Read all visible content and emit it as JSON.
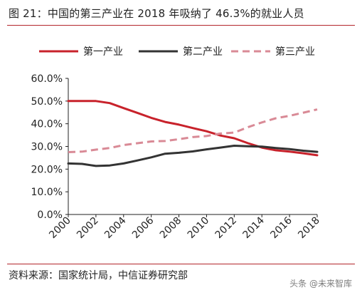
{
  "header": {
    "title": "图 21：中国的第三产业在 2018 年吸纳了 46.3%的就业人员"
  },
  "footer": {
    "source": "资料来源：国家统计局，中信证券研究部",
    "watermark": "头条 @未来智库"
  },
  "colors": {
    "rule": "#b3262b",
    "axis": "#222222"
  },
  "chart_data": {
    "type": "line",
    "title": "",
    "xlabel": "",
    "ylabel": "",
    "ylim": [
      0,
      60
    ],
    "xlim": [
      2000,
      2018
    ],
    "grid": false,
    "legend_position": "top",
    "x_ticks": [
      "2000",
      "2002",
      "2004",
      "2006",
      "2008",
      "2010",
      "2012",
      "2014",
      "2016",
      "2018"
    ],
    "y_ticks": [
      "0.0%",
      "10.0%",
      "20.0%",
      "30.0%",
      "40.0%",
      "50.0%",
      "60.0%"
    ],
    "x": [
      2000,
      2001,
      2002,
      2003,
      2004,
      2005,
      2006,
      2007,
      2008,
      2009,
      2010,
      2011,
      2012,
      2013,
      2014,
      2015,
      2016,
      2017,
      2018
    ],
    "series": [
      {
        "name": "第一产业",
        "color": "#c8222b",
        "dash": "solid",
        "values": [
          50.0,
          50.0,
          50.0,
          49.1,
          46.9,
          44.8,
          42.6,
          40.8,
          39.6,
          38.1,
          36.7,
          34.8,
          33.6,
          31.4,
          29.5,
          28.3,
          27.7,
          27.0,
          26.1
        ]
      },
      {
        "name": "第二产业",
        "color": "#333333",
        "dash": "solid",
        "values": [
          22.5,
          22.3,
          21.4,
          21.6,
          22.5,
          23.8,
          25.2,
          26.8,
          27.2,
          27.8,
          28.7,
          29.5,
          30.3,
          30.1,
          29.9,
          29.3,
          28.8,
          28.1,
          27.6
        ]
      },
      {
        "name": "第三产业",
        "color": "#d98a96",
        "dash": "dashed",
        "values": [
          27.5,
          27.7,
          28.6,
          29.3,
          30.6,
          31.4,
          32.2,
          32.4,
          33.2,
          34.1,
          34.6,
          35.7,
          36.1,
          38.5,
          40.6,
          42.4,
          43.5,
          44.9,
          46.3
        ]
      }
    ]
  }
}
